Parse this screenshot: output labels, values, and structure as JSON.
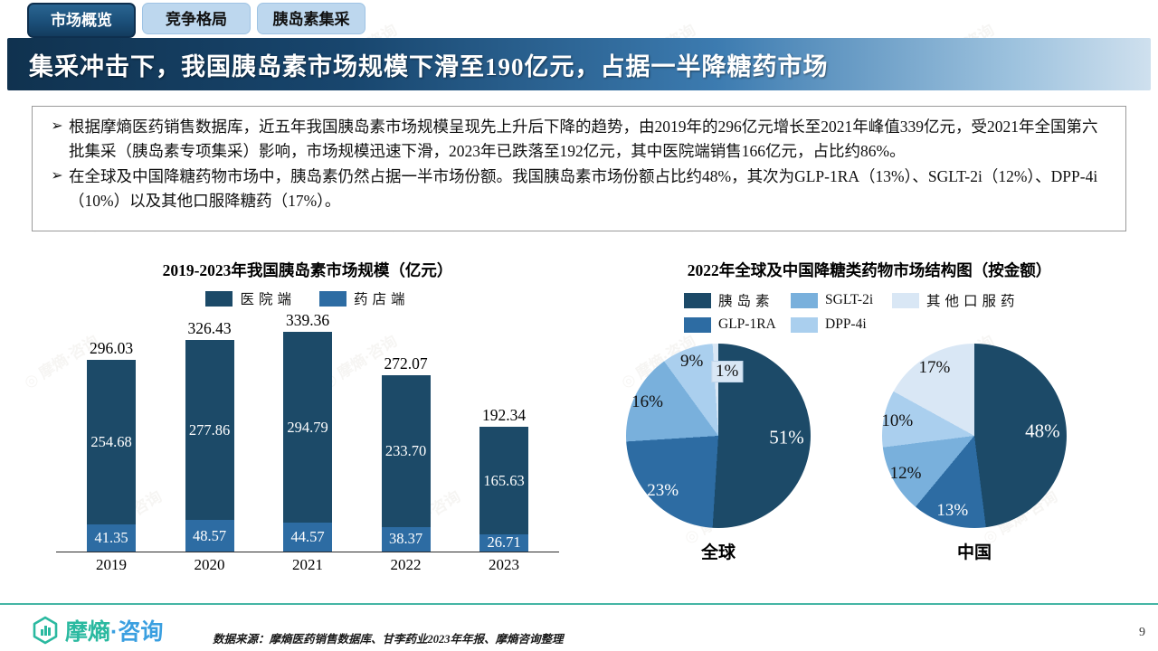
{
  "tabs": [
    {
      "label": "市场概览",
      "active": true
    },
    {
      "label": "竞争格局",
      "active": false
    },
    {
      "label": "胰岛素集采",
      "active": false
    }
  ],
  "header": {
    "title": "集采冲击下，我国胰岛素市场规模下滑至190亿元，占据一半降糖药市场"
  },
  "summary": {
    "bullet_char": "➢",
    "bullets": [
      "根据摩熵医药销售数据库，近五年我国胰岛素市场规模呈现先上升后下降的趋势，由2019年的296亿元增长至2021年峰值339亿元，受2021年全国第六批集采（胰岛素专项集采）影响，市场规模迅速下滑，2023年已跌落至192亿元，其中医院端销售166亿元，占比约86%。",
      "在全球及中国降糖药物市场中，胰岛素仍然占据一半市场份额。我国胰岛素市场份额占比约48%，其次为GLP-1RA（13%）、SGLT-2i（12%）、DPP-4i（10%）以及其他口服降糖药（17%）。"
    ]
  },
  "chart_data": [
    {
      "type": "bar",
      "title": "2019-2023年我国胰岛素市场规模（亿元）",
      "categories": [
        "2019",
        "2020",
        "2021",
        "2022",
        "2023"
      ],
      "stacked": true,
      "ylim": [
        0,
        340
      ],
      "series": [
        {
          "name": "医院端",
          "color": "#1c4a68",
          "values": [
            "254.68",
            "277.86",
            "294.79",
            "233.70",
            "165.63"
          ]
        },
        {
          "name": "药店端",
          "color": "#2d6ca3",
          "values": [
            "41.35",
            "48.57",
            "44.57",
            "38.37",
            "26.71"
          ]
        }
      ],
      "totals": [
        "296.03",
        "326.43",
        "339.36",
        "272.07",
        "192.34"
      ],
      "legend_position": "top",
      "grid": false
    },
    {
      "type": "pie",
      "title": "2022年全球及中国降糖类药物市场结构图（按金额）",
      "legend": [
        {
          "name": "胰岛素",
          "color": "#1c4a68"
        },
        {
          "name": "GLP-1RA",
          "color": "#2d6ca3"
        },
        {
          "name": "SGLT-2i",
          "color": "#79b0dc"
        },
        {
          "name": "DPP-4i",
          "color": "#aacfee"
        },
        {
          "name": "其他口服药",
          "color": "#d9e7f5"
        }
      ],
      "pies": [
        {
          "label": "全球",
          "values": [
            51,
            23,
            16,
            9,
            1
          ],
          "labels": [
            "51%",
            "23%",
            "16%",
            "9%",
            "1%"
          ]
        },
        {
          "label": "中国",
          "values": [
            48,
            13,
            12,
            10,
            17
          ],
          "labels": [
            "48%",
            "13%",
            "12%",
            "10%",
            "17%"
          ]
        }
      ]
    }
  ],
  "footer": {
    "logo_main": "摩熵",
    "logo_sub": "·咨询",
    "source": "数据来源：摩熵医药销售数据库、甘李药业2023年年报、摩熵咨询整理",
    "accent_color": "#45b5a5"
  },
  "watermark": "摩熵·咨询",
  "page": {
    "number": "9"
  }
}
